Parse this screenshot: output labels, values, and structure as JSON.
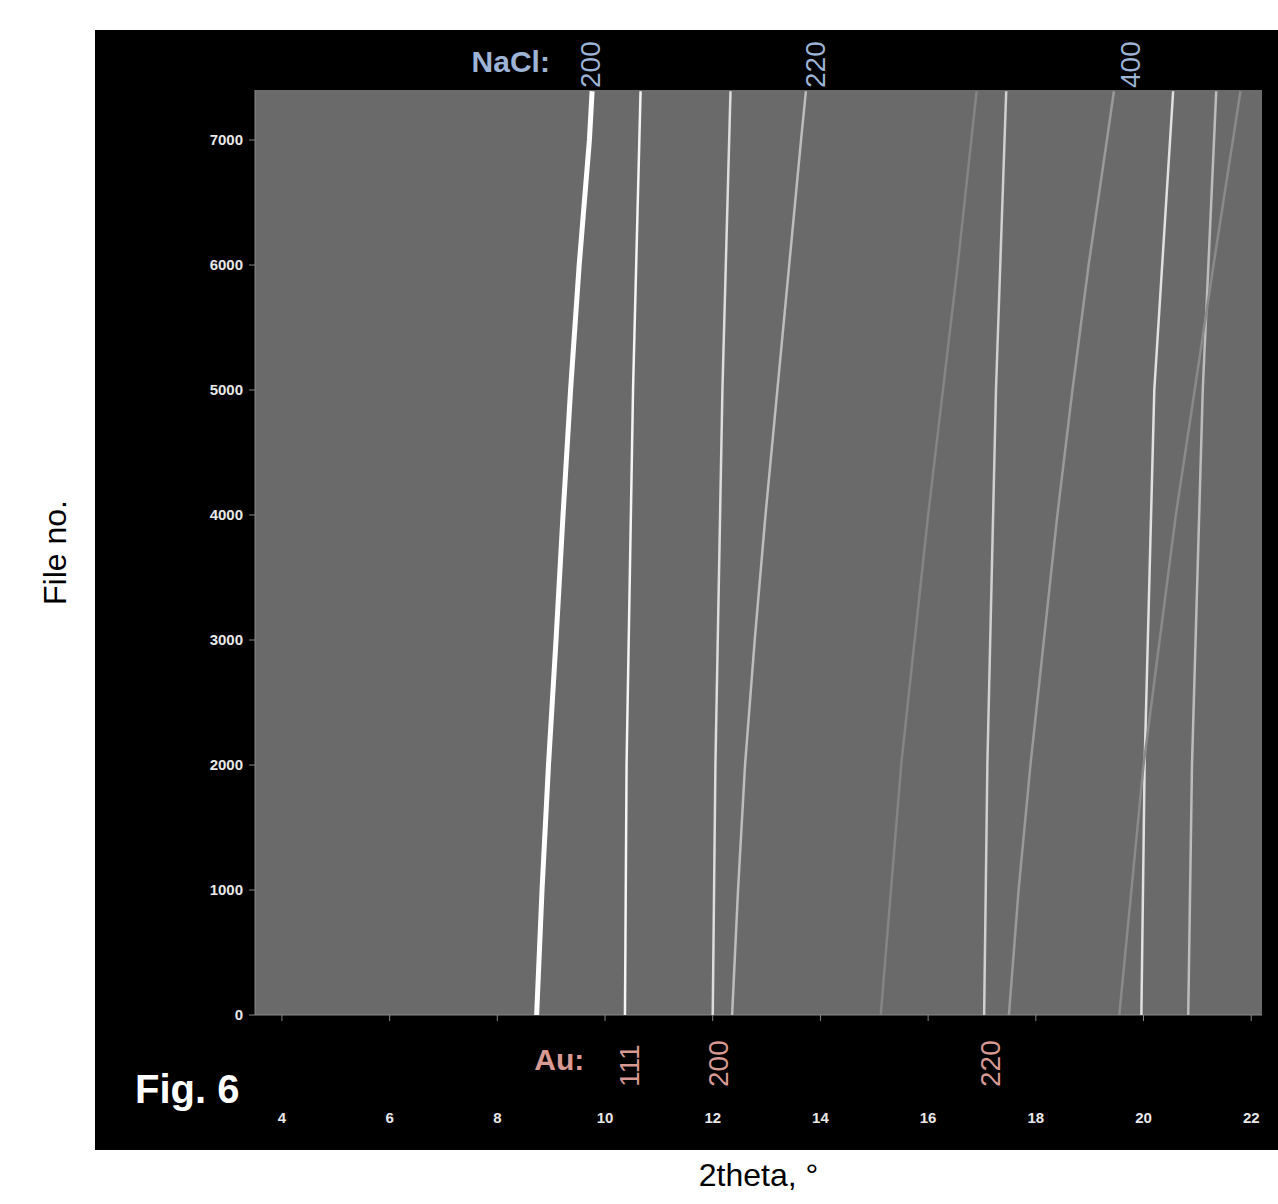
{
  "chart_data": {
    "type": "line",
    "title": "Fig. 6",
    "xlabel": "2theta, °",
    "ylabel": "File no.",
    "xlim": [
      3.5,
      22.2
    ],
    "xticks": [
      4,
      6,
      8,
      10,
      12,
      14,
      16,
      18,
      20,
      22
    ],
    "ylim": [
      0,
      7400
    ],
    "yticks": [
      0,
      1000,
      2000,
      3000,
      4000,
      5000,
      6000,
      7000
    ],
    "grid": false,
    "tick_labels": true,
    "series": [
      {
        "color": "#ffffff",
        "x": [
          8.73,
          8.83,
          8.95,
          9.09,
          9.22,
          9.36,
          9.52,
          9.71,
          9.76
        ],
        "y": [
          0,
          1000,
          2000,
          3000,
          4000,
          5000,
          6000,
          7000,
          7390
        ]
      },
      {
        "color": "#f4f4f4",
        "x": [
          10.37,
          10.4,
          10.52,
          10.66
        ],
        "y": [
          0,
          2000,
          5000,
          7390
        ]
      },
      {
        "color": "#dcdcdc",
        "x": [
          12.0,
          12.05,
          12.18,
          12.33
        ],
        "y": [
          0,
          2000,
          5000,
          7390
        ]
      },
      {
        "color": "#bdbdbd",
        "x": [
          12.36,
          12.47,
          12.6,
          12.78,
          12.98,
          13.2,
          13.42,
          13.64,
          13.73
        ],
        "y": [
          0,
          1000,
          2000,
          3000,
          4000,
          5000,
          6000,
          7000,
          7390
        ]
      },
      {
        "color": "#d0d0d0",
        "x": [
          17.04,
          17.1,
          17.26,
          17.45
        ],
        "y": [
          0,
          2000,
          5000,
          7390
        ]
      },
      {
        "color": "#9a9a9a",
        "x": [
          17.5,
          17.68,
          17.9,
          18.15,
          18.4,
          18.68,
          18.98,
          19.32,
          19.45
        ],
        "y": [
          0,
          1000,
          2000,
          3000,
          4000,
          5000,
          6000,
          7000,
          7390
        ]
      },
      {
        "color": "#e0e0e0",
        "x": [
          19.96,
          20.02,
          20.2,
          20.55
        ],
        "y": [
          0,
          2000,
          5000,
          7390
        ]
      },
      {
        "color": "#bcbcbc",
        "x": [
          20.83,
          20.9,
          21.1,
          21.35
        ],
        "y": [
          0,
          2000,
          5000,
          7390
        ]
      },
      {
        "color": "#8a8a8a",
        "x": [
          19.55,
          20.0,
          20.6,
          21.3,
          21.8
        ],
        "y": [
          0,
          2000,
          4000,
          6000,
          7390
        ]
      },
      {
        "color": "#858585",
        "x": [
          15.12,
          15.5,
          16.0,
          16.55,
          16.9
        ],
        "y": [
          0,
          2000,
          4000,
          6000,
          7390
        ]
      }
    ],
    "annotations": {
      "top": {
        "text": "NaCl:",
        "color": "#9db4d6",
        "labels": [
          {
            "x": 9.72,
            "label": "200"
          },
          {
            "x": 13.9,
            "label": "220"
          },
          {
            "x": 19.75,
            "label": "400"
          }
        ]
      },
      "bottom": {
        "text": "Au:",
        "color": "#d99a93",
        "labels": [
          {
            "x": 10.45,
            "label": "111"
          },
          {
            "x": 12.1,
            "label": "200"
          },
          {
            "x": 17.15,
            "label": "220"
          }
        ]
      }
    }
  }
}
